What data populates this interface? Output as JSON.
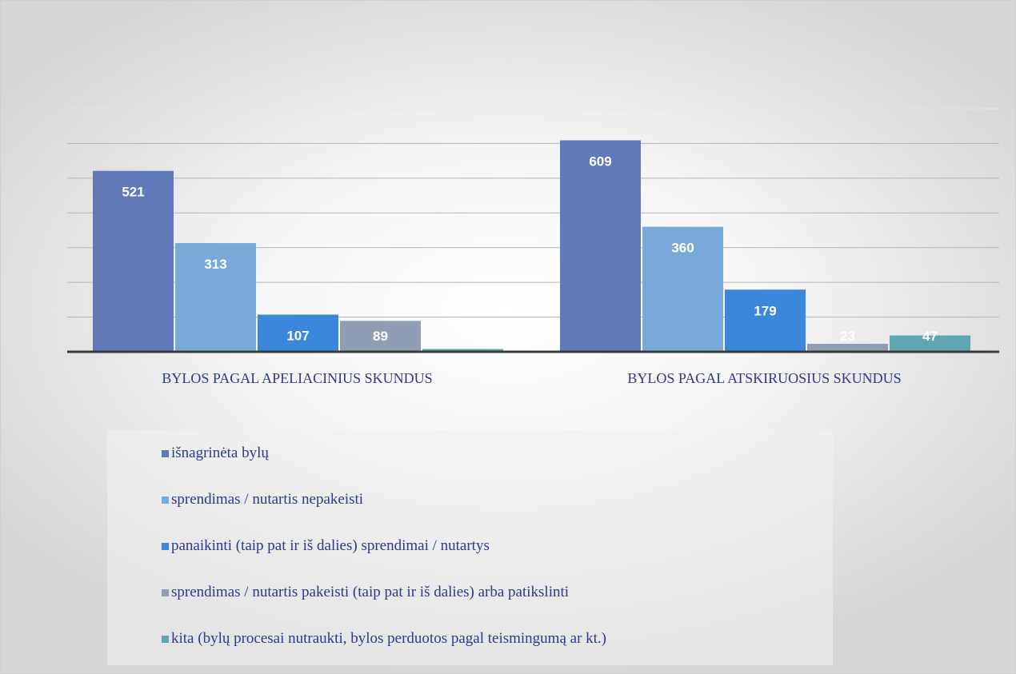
{
  "chart_data": {
    "type": "bar",
    "categories": [
      "BYLOS PAGAL APELIACINIUS SKUNDUS",
      "BYLOS PAGAL ATSKIRUOSIUS SKUNDUS"
    ],
    "series": [
      {
        "name": "išnagrinėta bylų",
        "color": "#6279b9",
        "values": [
          521,
          609
        ]
      },
      {
        "name": "sprendimas / nutartis nepakeisti",
        "color": "#79a9d8",
        "values": [
          313,
          360
        ]
      },
      {
        "name": "panaikinti (taip pat ir iš dalies) sprendimai / nutartys",
        "color": "#3a87dc",
        "values": [
          107,
          179
        ]
      },
      {
        "name": "sprendimas / nutartis pakeisti (taip pat ir iš dalies) arba patikslinti",
        "color": "#8f9db5",
        "values": [
          89,
          23
        ]
      },
      {
        "name": "kita (bylų procesai nutraukti, bylos perduotos pagal teismingumą ar kt.)",
        "color": "#5fa7b0",
        "values": [
          8,
          47
        ]
      }
    ],
    "data_labels": [
      [
        "521",
        "313",
        "107",
        "89",
        ""
      ],
      [
        "609",
        "360",
        "179",
        "23",
        "47"
      ]
    ],
    "ylim": [
      0,
      700
    ],
    "gridlines": [
      100,
      200,
      300,
      400,
      500,
      600,
      700
    ],
    "grid": true,
    "legend_position": "bottom",
    "title": "",
    "xlabel": "",
    "ylabel": ""
  }
}
